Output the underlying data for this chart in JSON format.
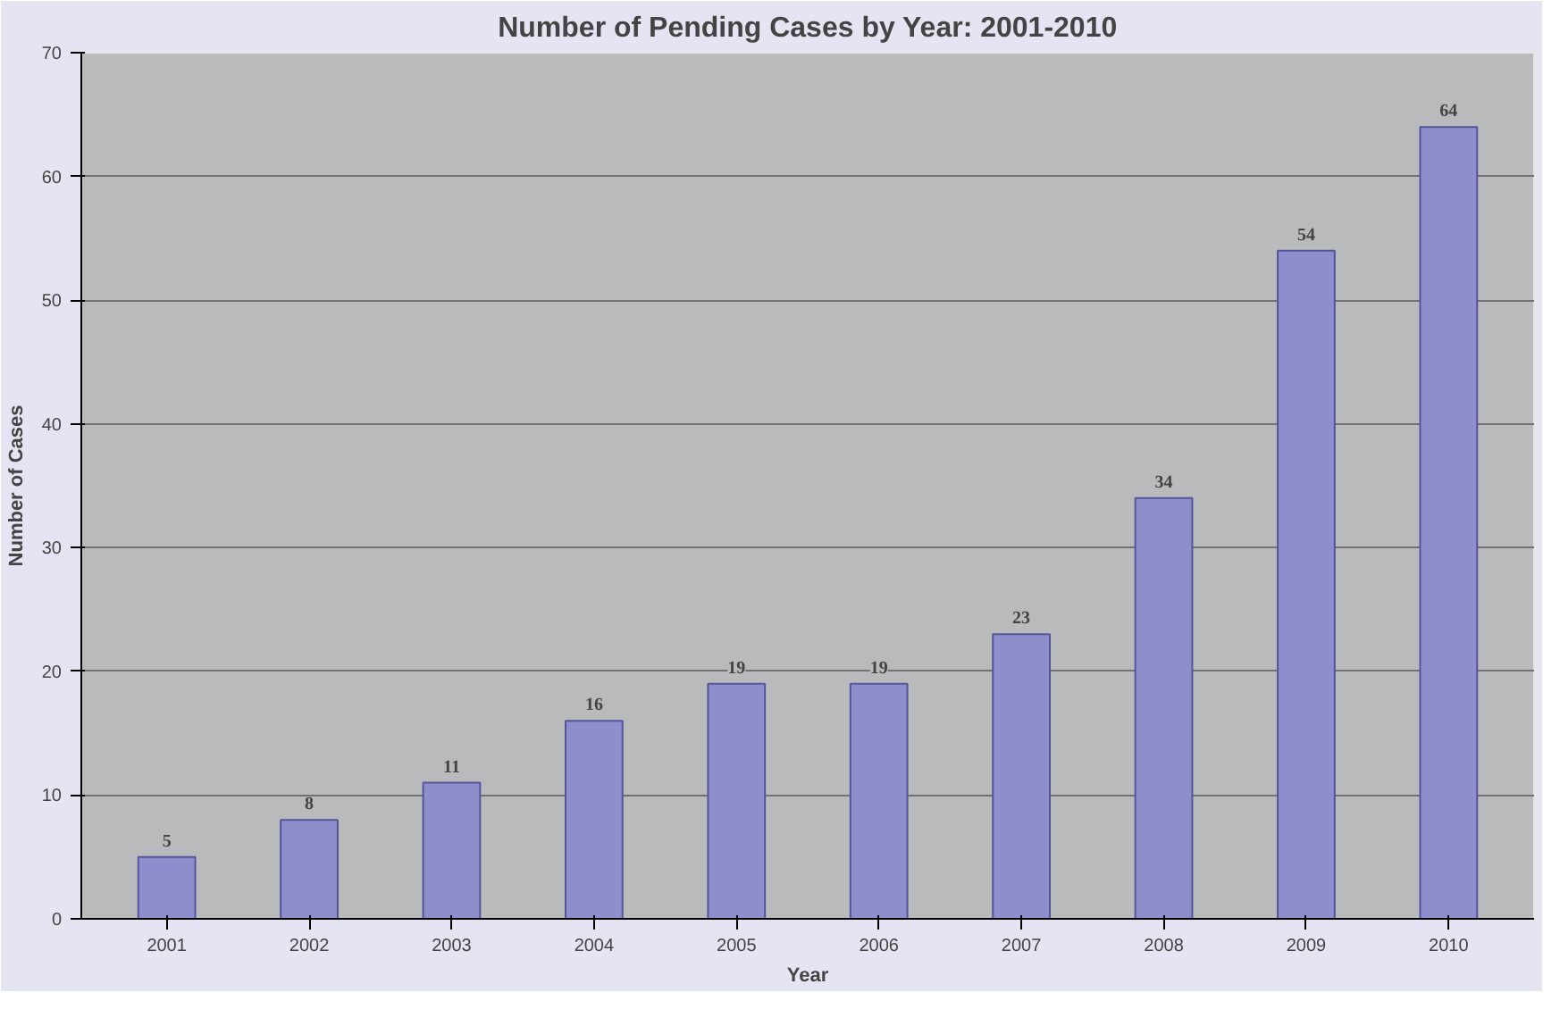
{
  "chart_data": {
    "type": "bar",
    "title": "Number of Pending Cases by Year: 2001-2010",
    "xlabel": "Year",
    "ylabel": "Number of Cases",
    "categories": [
      "2001",
      "2002",
      "2003",
      "2004",
      "2005",
      "2006",
      "2007",
      "2008",
      "2009",
      "2010"
    ],
    "values": [
      5,
      8,
      11,
      16,
      19,
      19,
      23,
      34,
      54,
      64
    ],
    "color": "#8e8ecc",
    "ylim": [
      0,
      70
    ],
    "yticks": [
      0,
      10,
      20,
      30,
      40,
      50,
      60,
      70
    ],
    "grid": "y",
    "data_labels": true
  }
}
